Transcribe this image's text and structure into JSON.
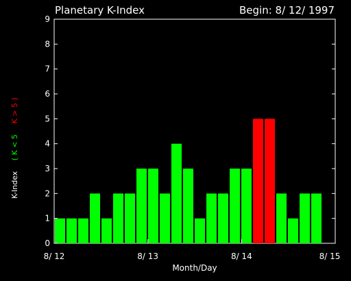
{
  "chart_data": {
    "type": "bar",
    "title": "Planetary K-Index",
    "subtitle": "Begin: 8/ 12/ 1997",
    "xlabel": "Month/Day",
    "ylabel": "K-Index",
    "ylabel_green": "( K < 5",
    "ylabel_red": "K > 5 )",
    "ylim": [
      0,
      9
    ],
    "yticks": [
      "0",
      "1",
      "2",
      "3",
      "4",
      "5",
      "6",
      "7",
      "8",
      "9"
    ],
    "xticks": [
      "8/ 12",
      "8/ 13",
      "8/ 14",
      "8/ 15"
    ],
    "values": [
      1,
      1,
      1,
      2,
      1,
      2,
      2,
      3,
      3,
      2,
      4,
      3,
      1,
      2,
      2,
      3,
      3,
      5,
      5,
      2,
      1,
      2,
      2
    ],
    "threshold": 5,
    "colors": {
      "low": "#00ff00",
      "high": "#ff0000",
      "axis": "#ffffff",
      "background": "#000000"
    }
  }
}
